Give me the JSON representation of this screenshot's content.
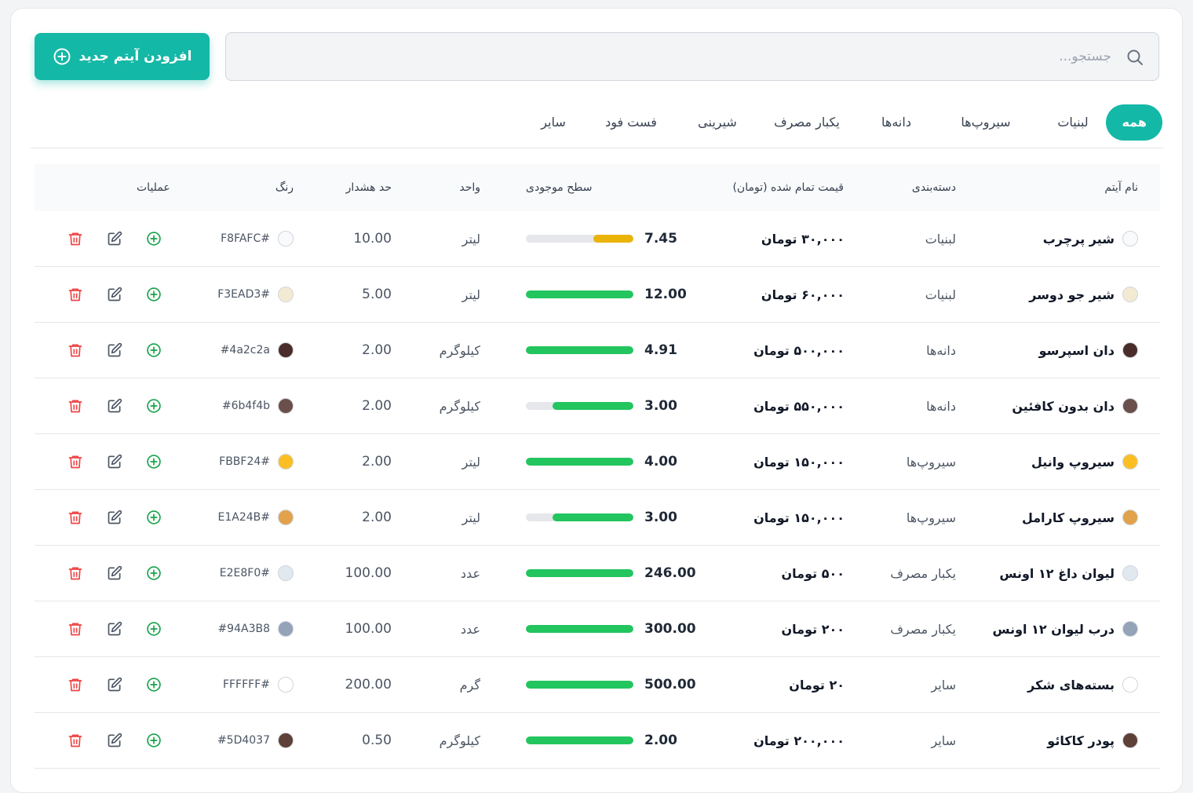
{
  "toolbar": {
    "add_label": "افزودن آیتم جدید",
    "search_placeholder": "جستجو...",
    "accent_color": "#14b8a6"
  },
  "tabs": [
    {
      "label": "همه",
      "active": true
    },
    {
      "label": "لبنیات"
    },
    {
      "label": "سیروپ‌ها"
    },
    {
      "label": "دانه‌ها"
    },
    {
      "label": "یکبار مصرف"
    },
    {
      "label": "شیرینی"
    },
    {
      "label": "فست فود"
    },
    {
      "label": "سایر"
    }
  ],
  "table": {
    "headers": {
      "name": "نام آیتم",
      "category": "دسته‌بندی",
      "price": "قیمت تمام شده (تومان)",
      "stock": "سطح موجودی",
      "unit": "واحد",
      "warning": "حد هشدار",
      "color": "رنگ",
      "ops": "عملیات"
    },
    "rows": [
      {
        "name": "شیر پرچرب",
        "category": "لبنیات",
        "price": "۳۰,۰۰۰ تومان",
        "stock": "7.45",
        "stock_level": 0.37,
        "bar_color": "#eab308",
        "unit": "لیتر",
        "warning": "10.00",
        "color": "#F8FAFC",
        "hex_label": "F8FAFC#"
      },
      {
        "name": "شیر جو دوسر",
        "category": "لبنیات",
        "price": "۶۰,۰۰۰ تومان",
        "stock": "12.00",
        "stock_level": 1.0,
        "bar_color": "#22c55e",
        "unit": "لیتر",
        "warning": "5.00",
        "color": "#F3EAD3",
        "hex_label": "F3EAD3#"
      },
      {
        "name": "دان اسپرسو",
        "category": "دانه‌ها",
        "price": "۵۰۰,۰۰۰ تومان",
        "stock": "4.91",
        "stock_level": 1.0,
        "bar_color": "#22c55e",
        "unit": "کیلوگرم",
        "warning": "2.00",
        "color": "#4a2c2a",
        "hex_label": "#4a2c2a"
      },
      {
        "name": "دان بدون کافئین",
        "category": "دانه‌ها",
        "price": "۵۵۰,۰۰۰ تومان",
        "stock": "3.00",
        "stock_level": 0.75,
        "bar_color": "#22c55e",
        "unit": "کیلوگرم",
        "warning": "2.00",
        "color": "#6b4f4b",
        "hex_label": "#6b4f4b"
      },
      {
        "name": "سیروپ وانیل",
        "category": "سیروپ‌ها",
        "price": "۱۵۰,۰۰۰ تومان",
        "stock": "4.00",
        "stock_level": 1.0,
        "bar_color": "#22c55e",
        "unit": "لیتر",
        "warning": "2.00",
        "color": "#FBBF24",
        "hex_label": "FBBF24#"
      },
      {
        "name": "سیروپ کارامل",
        "category": "سیروپ‌ها",
        "price": "۱۵۰,۰۰۰ تومان",
        "stock": "3.00",
        "stock_level": 0.75,
        "bar_color": "#22c55e",
        "unit": "لیتر",
        "warning": "2.00",
        "color": "#E1A24B",
        "hex_label": "E1A24B#"
      },
      {
        "name": "لیوان داغ ۱۲ اونس",
        "category": "یکبار مصرف",
        "price": "۵۰۰ تومان",
        "stock": "246.00",
        "stock_level": 1.0,
        "bar_color": "#22c55e",
        "unit": "عدد",
        "warning": "100.00",
        "color": "#E2E8F0",
        "hex_label": "E2E8F0#"
      },
      {
        "name": "درب لیوان ۱۲ اونس",
        "category": "یکبار مصرف",
        "price": "۲۰۰ تومان",
        "stock": "300.00",
        "stock_level": 1.0,
        "bar_color": "#22c55e",
        "unit": "عدد",
        "warning": "100.00",
        "color": "#94A3B8",
        "hex_label": "#94A3B8"
      },
      {
        "name": "بسته‌های شکر",
        "category": "سایر",
        "price": "۲۰ تومان",
        "stock": "500.00",
        "stock_level": 1.0,
        "bar_color": "#22c55e",
        "unit": "گرم",
        "warning": "200.00",
        "color": "#FFFFFF",
        "hex_label": "FFFFFF#"
      },
      {
        "name": "پودر کاکائو",
        "category": "سایر",
        "price": "۲۰۰,۰۰۰ تومان",
        "stock": "2.00",
        "stock_level": 1.0,
        "bar_color": "#22c55e",
        "unit": "کیلوگرم",
        "warning": "0.50",
        "color": "#5D4037",
        "hex_label": "#5D4037"
      }
    ]
  }
}
